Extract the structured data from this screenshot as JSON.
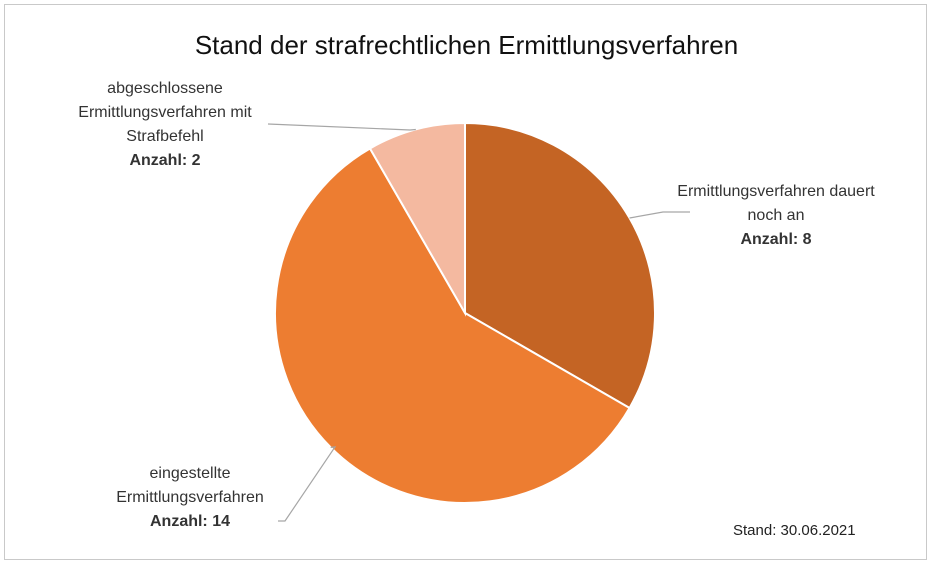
{
  "chart_data": {
    "type": "pie",
    "title": "Stand der strafrechtlichen Ermittlungsverfahren",
    "slices": [
      {
        "label": "Ermittlungsverfahren dauert noch an",
        "count_label": "Anzahl: 8",
        "value": 8,
        "color": "#c46424"
      },
      {
        "label": "eingestellte Ermittlungsverfahren",
        "count_label": "Anzahl: 14",
        "value": 14,
        "color": "#ed7d31"
      },
      {
        "label": "abgeschlossene Ermittlungsverfahren mit Strafbefehl",
        "count_label": "Anzahl: 2",
        "value": 2,
        "color": "#f4b9a0"
      }
    ],
    "footnote": "Stand: 30.06.2021",
    "start_angle_deg": 0,
    "direction": "clockwise"
  }
}
